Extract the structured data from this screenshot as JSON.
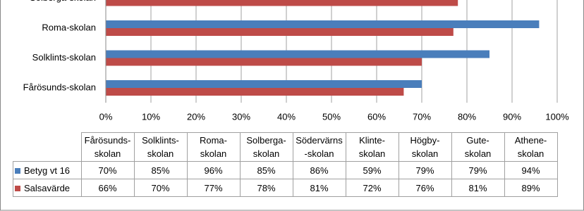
{
  "chart_data": {
    "type": "bar",
    "orientation": "horizontal",
    "categories": [
      "Fårösunds-skolan",
      "Solklints-skolan",
      "Roma-skolan",
      "Solberga-skolan",
      "Södervärns-skolan",
      "Klinte-skolan",
      "Högby-skolan",
      "Gute-skolan",
      "Athene-skolan"
    ],
    "series": [
      {
        "name": "Betyg vt 16",
        "color": "#4a7ebb",
        "values": [
          70,
          85,
          96,
          85,
          86,
          59,
          79,
          79,
          94
        ],
        "value_labels": [
          "70%",
          "85%",
          "96%",
          "85%",
          "86%",
          "59%",
          "79%",
          "79%",
          "94%"
        ]
      },
      {
        "name": "Salsavärde",
        "color": "#be4b48",
        "values": [
          66,
          70,
          77,
          78,
          81,
          72,
          76,
          81,
          89
        ],
        "value_labels": [
          "66%",
          "70%",
          "77%",
          "78%",
          "81%",
          "72%",
          "76%",
          "81%",
          "89%"
        ]
      }
    ],
    "xlim": [
      0,
      100
    ],
    "xticks": [
      {
        "value": 0,
        "label": "0%"
      },
      {
        "value": 10,
        "label": "10%"
      },
      {
        "value": 20,
        "label": "20%"
      },
      {
        "value": 30,
        "label": "30%"
      },
      {
        "value": 40,
        "label": "40%"
      },
      {
        "value": 50,
        "label": "50%"
      },
      {
        "value": 60,
        "label": "60%"
      },
      {
        "value": 70,
        "label": "70%"
      },
      {
        "value": 80,
        "label": "80%"
      },
      {
        "value": 90,
        "label": "90%"
      },
      {
        "value": 100,
        "label": "100%"
      }
    ],
    "grid": true
  }
}
